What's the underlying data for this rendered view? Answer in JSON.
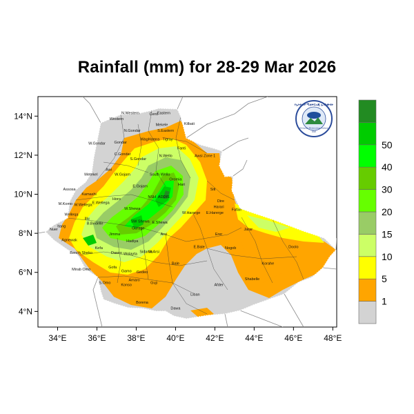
{
  "title": "Rainfall (mm) for 28-29 Mar 2026",
  "axes": {
    "x_ticks": [
      "34°E",
      "36°E",
      "38°E",
      "40°E",
      "42°E",
      "44°E",
      "46°E",
      "48°E"
    ],
    "y_ticks": [
      "14°N",
      "12°N",
      "10°N",
      "8°N",
      "6°N",
      "4°N"
    ]
  },
  "colorbar": {
    "labels": [
      "1",
      "5",
      "10",
      "15",
      "20",
      "30",
      "40",
      "50"
    ],
    "colors": [
      "#d3d3d3",
      "#ffa500",
      "#ffff00",
      "#ccff66",
      "#99cc66",
      "#66ff00",
      "#66cc00",
      "#00ff00",
      "#00cc00",
      "#228b22"
    ]
  },
  "logo": {
    "top_text": "የኢትዮጵያ ሚቲዎሮሎጂ ኢንስቲትዩት",
    "bottom_text": "Ethiopian Meteorology Institute",
    "sub_text": "EMI"
  },
  "region_labels": [
    {
      "text": "N.Western",
      "lon": 37.7,
      "lat": 14.1
    },
    {
      "text": "Cent.",
      "lon": 38.9,
      "lat": 14.05
    },
    {
      "text": "Eastern",
      "lon": 39.4,
      "lat": 14.1
    },
    {
      "text": "Western",
      "lon": 37.0,
      "lat": 13.8
    },
    {
      "text": "Mekele",
      "lon": 39.3,
      "lat": 13.5
    },
    {
      "text": "S.Eastern",
      "lon": 39.5,
      "lat": 13.2
    },
    {
      "text": "Kilbati",
      "lon": 40.7,
      "lat": 13.55
    },
    {
      "text": "N.Gondar",
      "lon": 37.8,
      "lat": 13.2
    },
    {
      "text": "WagHamra",
      "lon": 38.7,
      "lat": 12.75
    },
    {
      "text": "Tigray",
      "lon": 39.6,
      "lat": 12.75
    },
    {
      "text": "W.Gondar",
      "lon": 36.0,
      "lat": 12.55
    },
    {
      "text": "Gondar",
      "lon": 37.2,
      "lat": 12.6
    },
    {
      "text": "Fanti",
      "lon": 40.3,
      "lat": 12.3
    },
    {
      "text": "Awsi Zone 1",
      "lon": 41.5,
      "lat": 11.9
    },
    {
      "text": "N.Wello",
      "lon": 39.5,
      "lat": 11.9
    },
    {
      "text": "C.Gondar",
      "lon": 37.3,
      "lat": 12.0
    },
    {
      "text": "S.Gondar",
      "lon": 38.1,
      "lat": 11.75
    },
    {
      "text": "Metekel",
      "lon": 35.7,
      "lat": 10.95
    },
    {
      "text": "Awi",
      "lon": 36.6,
      "lat": 11.2
    },
    {
      "text": "W.Gojam",
      "lon": 37.3,
      "lat": 10.95
    },
    {
      "text": "South Wello",
      "lon": 39.2,
      "lat": 10.95
    },
    {
      "text": "Oromia",
      "lon": 40.0,
      "lat": 10.7
    },
    {
      "text": "Hari",
      "lon": 40.3,
      "lat": 10.45
    },
    {
      "text": "E.Gojam",
      "lon": 38.2,
      "lat": 10.35
    },
    {
      "text": "Assosa",
      "lon": 34.6,
      "lat": 10.2
    },
    {
      "text": "Kamashi",
      "lon": 35.6,
      "lat": 9.95
    },
    {
      "text": "Horo",
      "lon": 37.0,
      "lat": 9.7
    },
    {
      "text": "NSH",
      "lon": 38.8,
      "lat": 9.8
    },
    {
      "text": "ADDIS",
      "lon": 39.4,
      "lat": 9.8
    },
    {
      "text": "Siti",
      "lon": 41.9,
      "lat": 10.2
    },
    {
      "text": "Dire",
      "lon": 42.3,
      "lat": 9.6
    },
    {
      "text": "Harari",
      "lon": 42.2,
      "lat": 9.3
    },
    {
      "text": "Fafan",
      "lon": 43.1,
      "lat": 9.15
    },
    {
      "text": "M.Komo",
      "lon": 34.4,
      "lat": 9.45
    },
    {
      "text": "W.Wellega",
      "lon": 35.3,
      "lat": 9.4
    },
    {
      "text": "E.Wellega",
      "lon": 36.2,
      "lat": 9.5
    },
    {
      "text": "W.Shewa",
      "lon": 37.8,
      "lat": 9.2
    },
    {
      "text": "W.Hararge",
      "lon": 40.8,
      "lat": 9.0
    },
    {
      "text": "E.Harerge",
      "lon": 42.0,
      "lat": 9.0
    },
    {
      "text": "Welleqa",
      "lon": 34.7,
      "lat": 8.9
    },
    {
      "text": "Illu",
      "lon": 35.5,
      "lat": 8.7
    },
    {
      "text": "B.Bedelle",
      "lon": 35.9,
      "lat": 8.45
    },
    {
      "text": "SW Shewa",
      "lon": 38.2,
      "lat": 8.55
    },
    {
      "text": "E.Shewa",
      "lon": 39.2,
      "lat": 8.5
    },
    {
      "text": "Jarar",
      "lon": 43.7,
      "lat": 8.15
    },
    {
      "text": "Nuer",
      "lon": 33.8,
      "lat": 8.15
    },
    {
      "text": "Itang",
      "lon": 34.2,
      "lat": 8.3
    },
    {
      "text": "Gurage",
      "lon": 38.1,
      "lat": 8.2
    },
    {
      "text": "Jimma",
      "lon": 36.9,
      "lat": 7.9
    },
    {
      "text": "Arsi",
      "lon": 39.4,
      "lat": 7.9
    },
    {
      "text": "Erer",
      "lon": 42.2,
      "lat": 7.9
    },
    {
      "text": "Agnewak",
      "lon": 34.6,
      "lat": 7.6
    },
    {
      "text": "Kefa",
      "lon": 36.1,
      "lat": 7.2
    },
    {
      "text": "Hadiya",
      "lon": 37.8,
      "lat": 7.55
    },
    {
      "text": "Sidama",
      "lon": 38.5,
      "lat": 7.0
    },
    {
      "text": "E.Bale",
      "lon": 41.2,
      "lat": 7.25
    },
    {
      "text": "Nogob",
      "lon": 42.8,
      "lat": 7.2
    },
    {
      "text": "Doolo",
      "lon": 46.0,
      "lat": 7.25
    },
    {
      "text": "Bench Sheko",
      "lon": 35.2,
      "lat": 6.95
    },
    {
      "text": "Dawro",
      "lon": 37.0,
      "lat": 6.95
    },
    {
      "text": "Wolayta",
      "lon": 37.7,
      "lat": 6.9
    },
    {
      "text": "W.Arsi",
      "lon": 38.9,
      "lat": 7.0
    },
    {
      "text": "Bale",
      "lon": 40.0,
      "lat": 6.4
    },
    {
      "text": "Korahe",
      "lon": 44.7,
      "lat": 6.4
    },
    {
      "text": "Mirab Omo",
      "lon": 35.2,
      "lat": 6.1
    },
    {
      "text": "Gofa",
      "lon": 36.8,
      "lat": 6.2
    },
    {
      "text": "Gamo",
      "lon": 37.5,
      "lat": 6.0
    },
    {
      "text": "Gedeo",
      "lon": 38.3,
      "lat": 5.95
    },
    {
      "text": "Shabelle",
      "lon": 43.9,
      "lat": 5.6
    },
    {
      "text": "S.Omo",
      "lon": 36.4,
      "lat": 5.4
    },
    {
      "text": "Amaro",
      "lon": 37.9,
      "lat": 5.55
    },
    {
      "text": "Guji",
      "lon": 38.9,
      "lat": 5.4
    },
    {
      "text": "Konso",
      "lon": 37.5,
      "lat": 5.3
    },
    {
      "text": "Afder",
      "lon": 42.2,
      "lat": 5.3
    },
    {
      "text": "Liban",
      "lon": 41.0,
      "lat": 4.8
    },
    {
      "text": "Borena",
      "lon": 38.3,
      "lat": 4.4
    },
    {
      "text": "Dawa",
      "lon": 40.0,
      "lat": 4.1
    }
  ]
}
